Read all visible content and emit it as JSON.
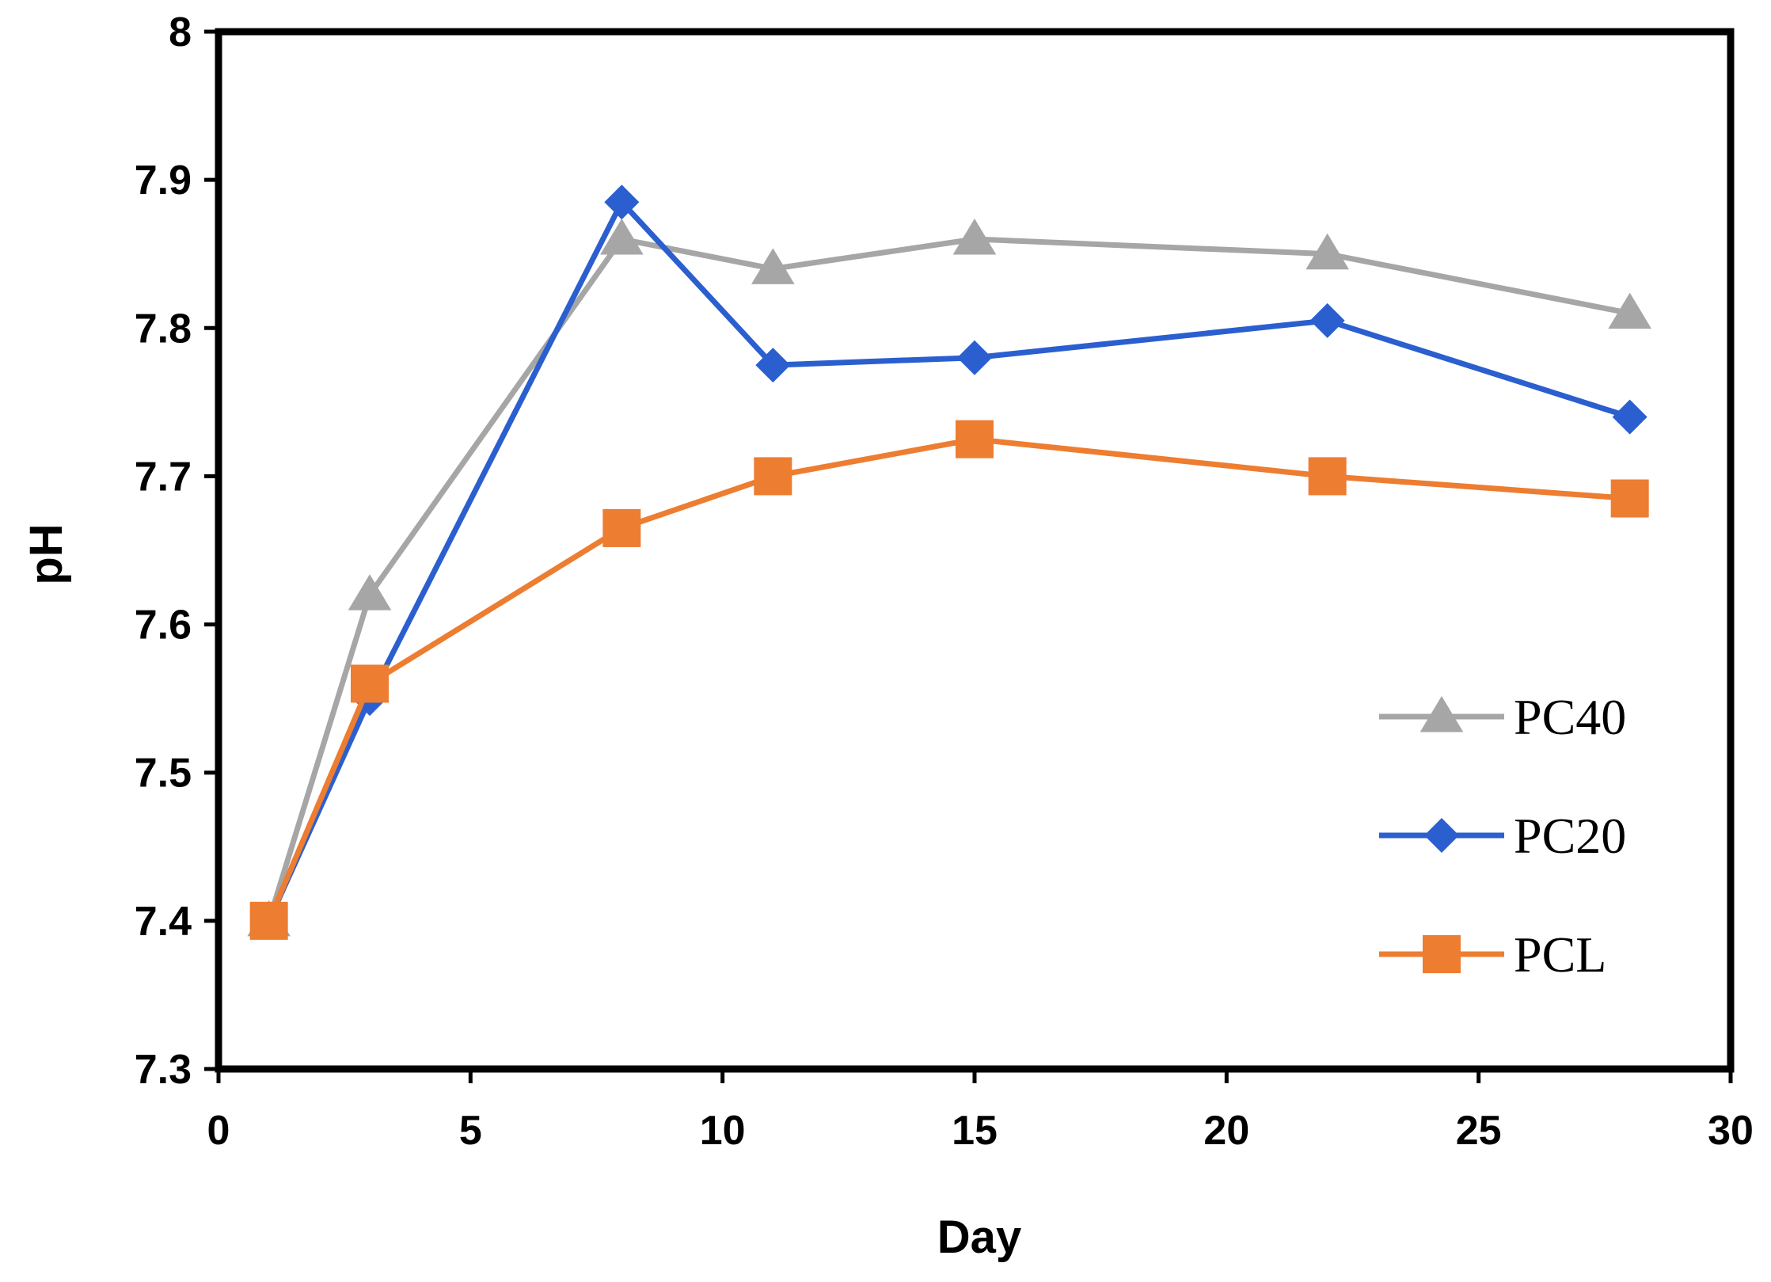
{
  "chart_data": {
    "type": "line",
    "title": "",
    "xlabel": "Day",
    "ylabel": "pH",
    "xlim": [
      0,
      30
    ],
    "ylim": [
      7.3,
      8
    ],
    "xticks": [
      0,
      5,
      10,
      15,
      20,
      25,
      30
    ],
    "yticks": [
      7.3,
      7.4,
      7.5,
      7.6,
      7.7,
      7.8,
      7.9,
      8
    ],
    "x_tick_labels": [
      "0",
      "5",
      "10",
      "15",
      "20",
      "25",
      "30"
    ],
    "y_tick_labels": [
      "7.3",
      "7.4",
      "7.5",
      "7.6",
      "7.7",
      "7.8",
      "7.9",
      "8"
    ],
    "grid": false,
    "legend_position": "bottom-right",
    "series": [
      {
        "name": "PC40",
        "marker": "triangle",
        "color": "#a6a6a6",
        "x": [
          1,
          3,
          8,
          11,
          15,
          22,
          28
        ],
        "y": [
          7.4,
          7.62,
          7.86,
          7.84,
          7.86,
          7.85,
          7.81
        ]
      },
      {
        "name": "PC20",
        "marker": "diamond",
        "color": "#2b5fcf",
        "x": [
          1,
          3,
          8,
          11,
          15,
          22,
          28
        ],
        "y": [
          7.4,
          7.55,
          7.885,
          7.775,
          7.78,
          7.805,
          7.74
        ]
      },
      {
        "name": "PCL",
        "marker": "square",
        "color": "#ed7d31",
        "x": [
          1,
          3,
          8,
          11,
          15,
          22,
          28
        ],
        "y": [
          7.4,
          7.56,
          7.665,
          7.7,
          7.725,
          7.7,
          7.685
        ]
      }
    ]
  }
}
